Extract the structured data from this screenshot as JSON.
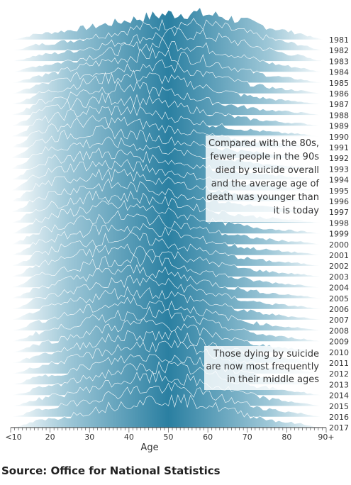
{
  "chart_data": {
    "type": "area",
    "subtype": "ridgeline",
    "xlabel": "Age",
    "x_ticks": [
      "<10",
      "20",
      "30",
      "40",
      "50",
      "60",
      "70",
      "80",
      "90+"
    ],
    "x_range": [
      10,
      90
    ],
    "years": [
      "1981",
      "1982",
      "1983",
      "1984",
      "1985",
      "1986",
      "1987",
      "1988",
      "1989",
      "1990",
      "1991",
      "1992",
      "1993",
      "1994",
      "1995",
      "1996",
      "1997",
      "1998",
      "1999",
      "2000",
      "2001",
      "2002",
      "2003",
      "2004",
      "2005",
      "2006",
      "2007",
      "2008",
      "2009",
      "2010",
      "2011",
      "2012",
      "2013",
      "2014",
      "2015",
      "2016",
      "2017"
    ],
    "peak_age_by_year": [
      58,
      57,
      56,
      52,
      48,
      44,
      40,
      36,
      34,
      32,
      30,
      29,
      29,
      30,
      30,
      31,
      32,
      33,
      34,
      35,
      36,
      36,
      37,
      38,
      39,
      40,
      41,
      42,
      43,
      44,
      45,
      46,
      47,
      48,
      48,
      49,
      50
    ],
    "series_color": "#2a7fa1",
    "annotations": [
      {
        "text": "Compared with the 80s, fewer people in the 90s died by suicide overall and the average age of death was younger than it is today",
        "lines": [
          "Compared with the 80s,",
          "fewer people in the 90s",
          "died by suicide overall",
          "and the average age of",
          "death was younger than",
          "it is today"
        ]
      },
      {
        "text": "Those dying by suicide are now most frequently in their middle ages",
        "lines": [
          "Those dying by suicide",
          "are now most frequently",
          "in their middle ages"
        ]
      }
    ]
  },
  "source": "Source: Office for National Statistics"
}
